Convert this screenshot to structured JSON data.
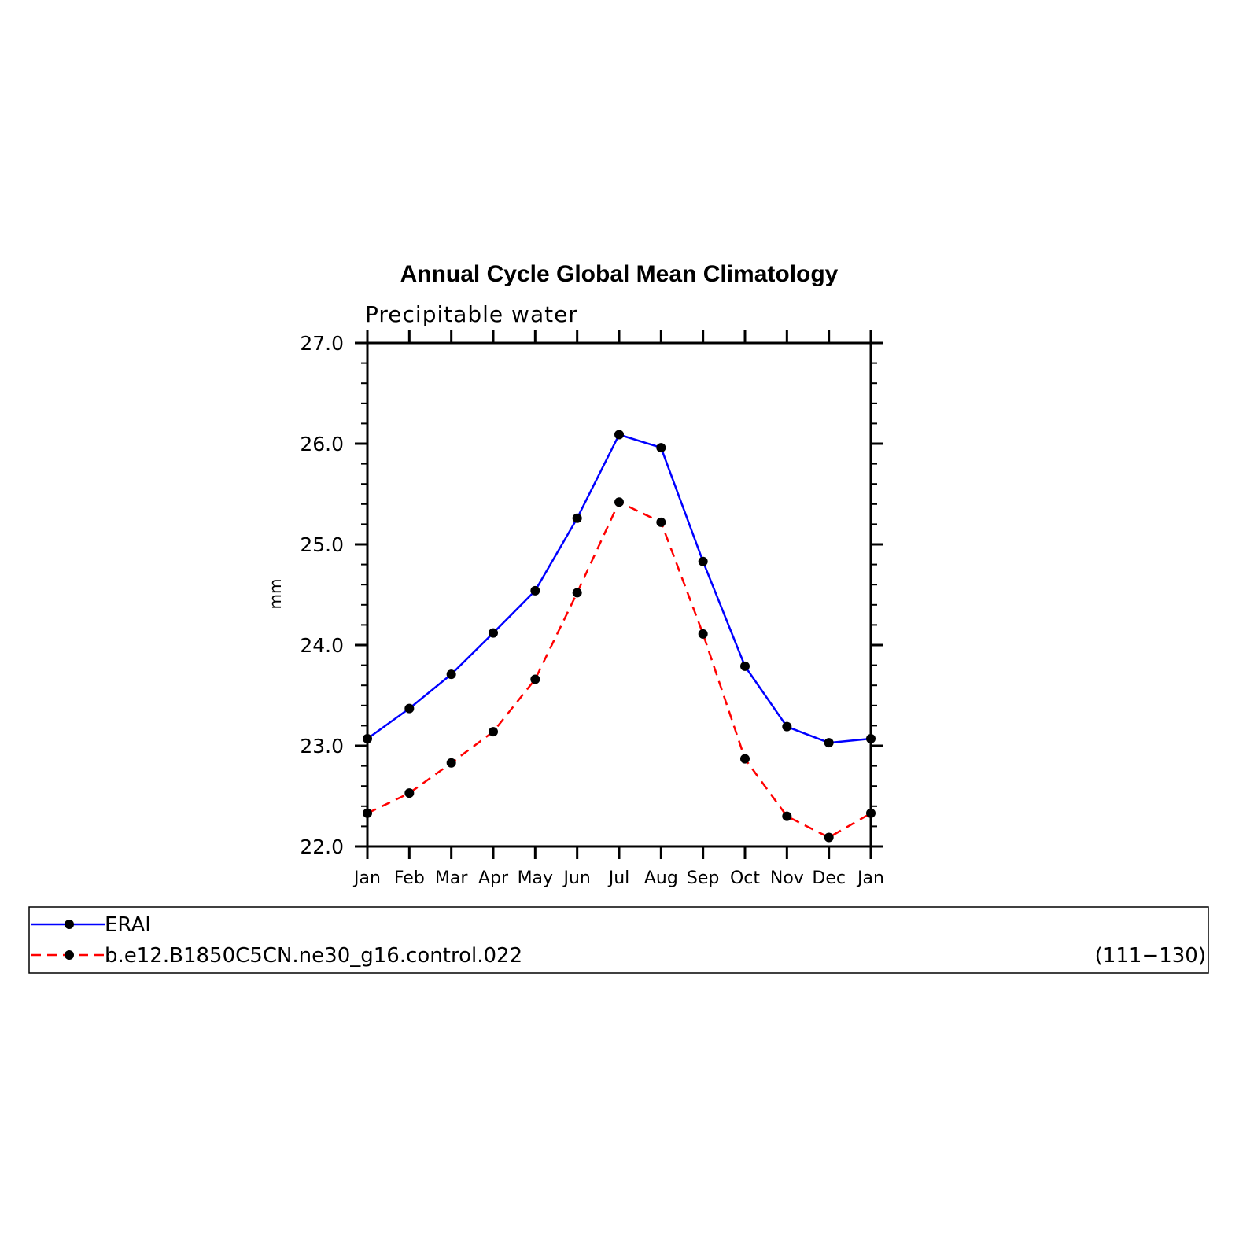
{
  "chart_data": {
    "type": "line",
    "title": "Annual Cycle Global Mean Climatology",
    "subtitle": "Precipitable water",
    "ylabel": "mm",
    "xlabel": "",
    "categories": [
      "Jan",
      "Feb",
      "Mar",
      "Apr",
      "May",
      "Jun",
      "Jul",
      "Aug",
      "Sep",
      "Oct",
      "Nov",
      "Dec",
      "Jan"
    ],
    "ylim": [
      22.0,
      27.0
    ],
    "yticks": [
      "22.0",
      "23.0",
      "24.0",
      "25.0",
      "26.0",
      "27.0"
    ],
    "grid": false,
    "legend_position": "bottom",
    "series": [
      {
        "name": "ERAI",
        "color": "#0000ff",
        "dash": "solid",
        "marker": "filled-circle",
        "values": [
          23.07,
          23.37,
          23.71,
          24.12,
          24.54,
          25.26,
          26.09,
          25.96,
          24.83,
          23.79,
          23.19,
          23.03,
          23.07
        ]
      },
      {
        "name": "b.e12.B1850C5CN.ne30_g16.control.022",
        "color": "#ff0000",
        "dash": "dashed",
        "marker": "filled-circle",
        "values": [
          22.33,
          22.53,
          22.83,
          23.14,
          23.66,
          24.52,
          25.42,
          25.22,
          24.11,
          22.87,
          22.3,
          22.09,
          22.33
        ]
      }
    ],
    "legend_note": "(111−130)"
  }
}
